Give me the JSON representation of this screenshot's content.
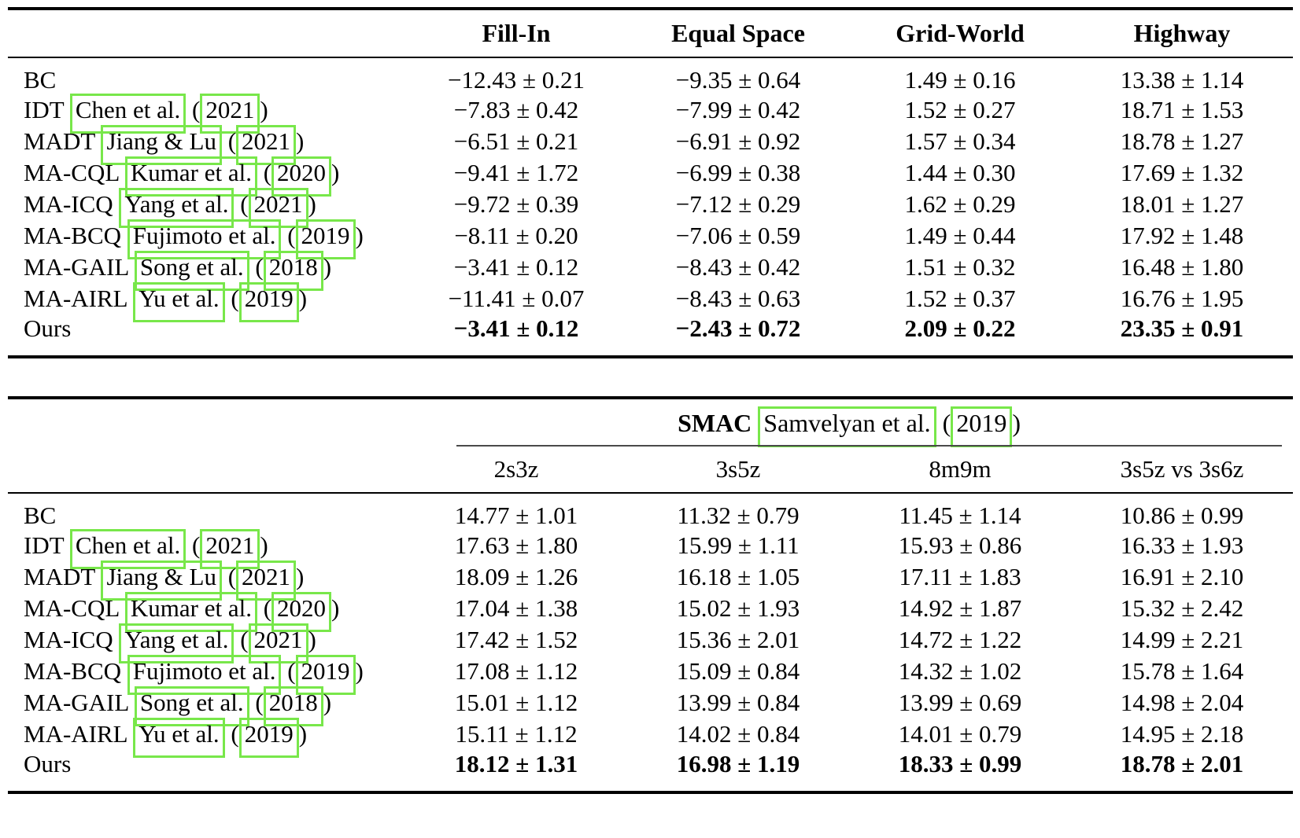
{
  "link_box_color": "#78e74a",
  "rule_color": "#000000",
  "table1": {
    "columns": [
      "Fill-In",
      "Equal Space",
      "Grid-World",
      "Highway"
    ],
    "rows": [
      {
        "method": "BC",
        "cite": "",
        "year": "",
        "bold": false,
        "values": [
          "−12.43 ± 0.21",
          "−9.35 ± 0.64",
          "1.49 ± 0.16",
          "13.38 ± 1.14"
        ]
      },
      {
        "method": "IDT",
        "cite": "Chen et al.",
        "year": "2021",
        "bold": false,
        "values": [
          "−7.83 ± 0.42",
          "−7.99 ± 0.42",
          "1.52 ± 0.27",
          "18.71 ± 1.53"
        ]
      },
      {
        "method": "MADT",
        "cite": "Jiang & Lu",
        "year": "2021",
        "bold": false,
        "values": [
          "−6.51 ± 0.21",
          "−6.91 ± 0.92",
          "1.57 ± 0.34",
          "18.78 ± 1.27"
        ]
      },
      {
        "method": "MA-CQL",
        "cite": "Kumar et al.",
        "year": "2020",
        "bold": false,
        "values": [
          "−9.41 ± 1.72",
          "−6.99 ± 0.38",
          "1.44 ± 0.30",
          "17.69 ± 1.32"
        ]
      },
      {
        "method": "MA-ICQ",
        "cite": "Yang et al.",
        "year": "2021",
        "bold": false,
        "values": [
          "−9.72 ± 0.39",
          "−7.12 ± 0.29",
          "1.62 ± 0.29",
          "18.01 ± 1.27"
        ]
      },
      {
        "method": "MA-BCQ",
        "cite": "Fujimoto et al.",
        "year": "2019",
        "bold": false,
        "values": [
          "−8.11 ± 0.20",
          "−7.06 ± 0.59",
          "1.49 ± 0.44",
          "17.92 ± 1.48"
        ]
      },
      {
        "method": "MA-GAIL",
        "cite": "Song et al.",
        "year": "2018",
        "bold": false,
        "values": [
          "−3.41 ± 0.12",
          "−8.43 ± 0.42",
          "1.51 ± 0.32",
          "16.48 ± 1.80"
        ]
      },
      {
        "method": "MA-AIRL",
        "cite": "Yu et al.",
        "year": "2019",
        "bold": false,
        "values": [
          "−11.41 ± 0.07",
          "−8.43 ± 0.63",
          "1.52 ± 0.37",
          "16.76 ± 1.95"
        ]
      },
      {
        "method": "Ours",
        "cite": "",
        "year": "",
        "bold": true,
        "values": [
          "−3.41 ± 0.12",
          "−2.43 ± 0.72",
          "2.09 ± 0.22",
          "23.35 ± 0.91"
        ]
      }
    ]
  },
  "table2": {
    "group": {
      "title": "SMAC",
      "cite": "Samvelyan et al.",
      "year": "2019",
      "open_paren": "(",
      "close_paren": ")"
    },
    "columns": [
      "2s3z",
      "3s5z",
      "8m9m",
      "3s5z vs 3s6z"
    ],
    "rows": [
      {
        "method": "BC",
        "cite": "",
        "year": "",
        "bold": false,
        "values": [
          "14.77 ± 1.01",
          "11.32 ± 0.79",
          "11.45 ± 1.14",
          "10.86 ± 0.99"
        ]
      },
      {
        "method": "IDT",
        "cite": "Chen et al.",
        "year": "2021",
        "bold": false,
        "values": [
          "17.63 ± 1.80",
          "15.99 ± 1.11",
          "15.93 ± 0.86",
          "16.33 ± 1.93"
        ]
      },
      {
        "method": "MADT",
        "cite": "Jiang & Lu",
        "year": "2021",
        "bold": false,
        "values": [
          "18.09 ± 1.26",
          "16.18 ± 1.05",
          "17.11 ± 1.83",
          "16.91 ± 2.10"
        ]
      },
      {
        "method": "MA-CQL",
        "cite": "Kumar et al.",
        "year": "2020",
        "bold": false,
        "values": [
          "17.04 ± 1.38",
          "15.02 ± 1.93",
          "14.92 ± 1.87",
          "15.32 ± 2.42"
        ]
      },
      {
        "method": "MA-ICQ",
        "cite": "Yang et al.",
        "year": "2021",
        "bold": false,
        "values": [
          "17.42 ± 1.52",
          "15.36 ± 2.01",
          "14.72 ± 1.22",
          "14.99 ± 2.21"
        ]
      },
      {
        "method": "MA-BCQ",
        "cite": "Fujimoto et al.",
        "year": "2019",
        "bold": false,
        "values": [
          "17.08 ± 1.12",
          "15.09 ± 0.84",
          "14.32 ± 1.02",
          "15.78 ± 1.64"
        ]
      },
      {
        "method": "MA-GAIL",
        "cite": "Song et al.",
        "year": "2018",
        "bold": false,
        "values": [
          "15.01 ± 1.12",
          "13.99 ± 0.84",
          "13.99 ± 0.69",
          "14.98 ± 2.04"
        ]
      },
      {
        "method": "MA-AIRL",
        "cite": "Yu et al.",
        "year": "2019",
        "bold": false,
        "values": [
          "15.11 ± 1.12",
          "14.02 ± 0.84",
          "14.01 ± 0.79",
          "14.95 ± 2.18"
        ]
      },
      {
        "method": "Ours",
        "cite": "",
        "year": "",
        "bold": true,
        "values": [
          "18.12 ± 1.31",
          "16.98 ± 1.19",
          "18.33 ± 0.99",
          "18.78 ± 2.01"
        ]
      }
    ]
  }
}
